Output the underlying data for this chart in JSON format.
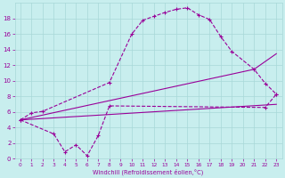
{
  "line1_x": [
    0,
    1,
    2,
    8,
    10,
    11,
    12,
    13,
    14,
    15,
    16,
    17,
    18,
    19,
    21,
    22,
    23
  ],
  "line1_y": [
    5.0,
    5.9,
    6.1,
    9.8,
    16.0,
    17.8,
    18.3,
    18.8,
    19.2,
    19.4,
    18.5,
    17.9,
    15.7,
    13.8,
    11.5,
    9.7,
    8.3
  ],
  "line2_x": [
    0,
    23
  ],
  "line2_y": [
    5.0,
    7.0
  ],
  "line3_x": [
    0,
    21,
    23
  ],
  "line3_y": [
    5.0,
    11.5,
    13.5
  ],
  "line4_x": [
    0,
    3,
    4,
    5,
    6,
    7,
    8,
    22,
    23
  ],
  "line4_y": [
    5.0,
    3.2,
    0.9,
    1.8,
    0.4,
    3.0,
    6.8,
    6.6,
    8.3
  ],
  "color": "#990099",
  "bg_color": "#c8eeee",
  "grid_color": "#a8d8d8",
  "xlabel": "Windchill (Refroidissement éolien,°C)",
  "xlim": [
    -0.5,
    23.5
  ],
  "ylim": [
    0,
    20
  ],
  "xticks": [
    0,
    1,
    2,
    3,
    4,
    5,
    6,
    7,
    8,
    9,
    10,
    11,
    12,
    13,
    14,
    15,
    16,
    17,
    18,
    19,
    20,
    21,
    22,
    23
  ],
  "yticks": [
    0,
    2,
    4,
    6,
    8,
    10,
    12,
    14,
    16,
    18
  ]
}
